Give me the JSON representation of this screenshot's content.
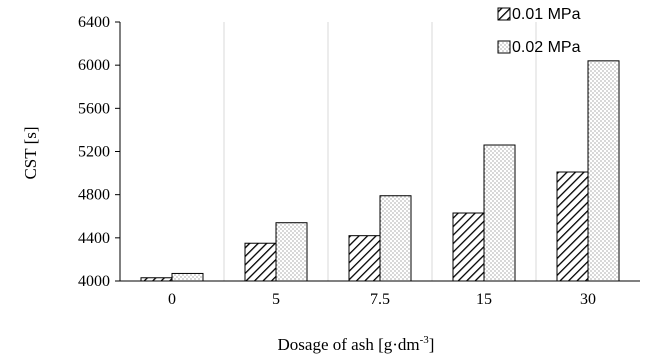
{
  "chart_data": {
    "type": "bar",
    "categories": [
      "0",
      "5",
      "7.5",
      "15",
      "30"
    ],
    "series": [
      {
        "name": "0.01 MPa",
        "values": [
          4030,
          4350,
          4420,
          4630,
          5010
        ],
        "pattern": "diagonal-hatch"
      },
      {
        "name": "0.02 MPa",
        "values": [
          4070,
          4540,
          4790,
          5260,
          6040
        ],
        "pattern": "dots"
      }
    ],
    "xlabel": "Dosage of ash [g·dm",
    "xlabel_sup": "-3",
    "xlabel_end": "]",
    "ylabel": "CST [s]",
    "ylim": [
      4000,
      6400
    ],
    "yticks": [
      4000,
      4400,
      4800,
      5200,
      5600,
      6000,
      6400
    ],
    "grid": "vertical-category-dividers",
    "legend_position": "top-right",
    "colors": {
      "stroke": "#000000",
      "grid": "#d9d9d9",
      "fill": "#ffffff"
    }
  }
}
